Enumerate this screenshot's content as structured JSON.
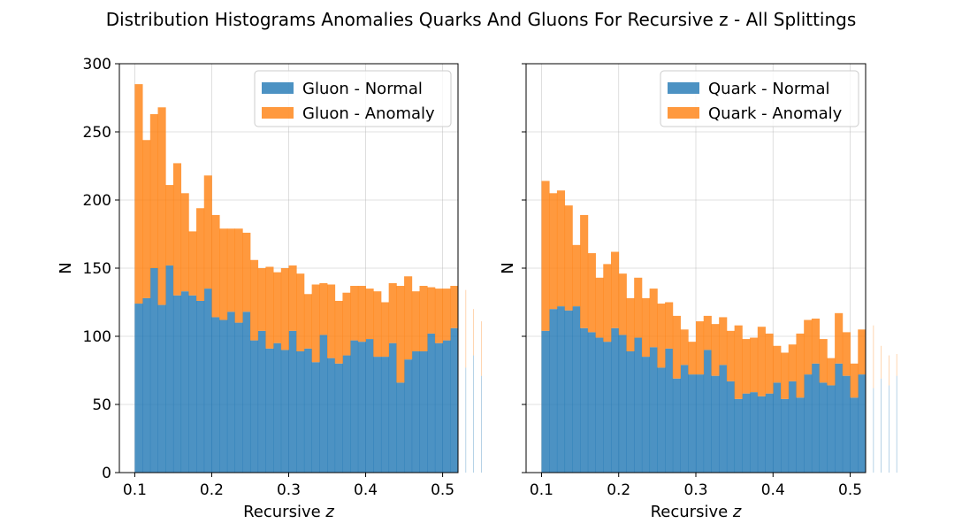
{
  "figure": {
    "title": "Distribution Histograms Anomalies Quarks And Gluons For Recursive $z$ - All Splittings",
    "title_display": "Distribution Histograms Anomalies Quarks And Gluons For Recursive z - All Splittings"
  },
  "colors": {
    "normal": "#1f77b4",
    "anomaly": "#ff7f0e",
    "alpha": 0.8
  },
  "chart_data": [
    {
      "type": "bar",
      "stacked": true,
      "panel": "left",
      "xlabel": "Recursive $z$",
      "ylabel": "N",
      "xlim": [
        0.08,
        0.52
      ],
      "ylim": [
        0,
        300
      ],
      "xticks": [
        0.1,
        0.2,
        0.3,
        0.4,
        0.5
      ],
      "yticks": [
        0,
        50,
        100,
        150,
        200,
        250,
        300
      ],
      "grid": true,
      "legend_loc": "upper right",
      "bin_start": 0.1,
      "bin_width": 0.01,
      "series": [
        {
          "name": "Gluon - Normal",
          "values": [
            124,
            128,
            150,
            123,
            152,
            130,
            133,
            130,
            126,
            135,
            114,
            112,
            118,
            110,
            118,
            97,
            104,
            91,
            95,
            90,
            104,
            89,
            91,
            81,
            101,
            84,
            80,
            86,
            97,
            96,
            98,
            85,
            85,
            95,
            66,
            83,
            89,
            89,
            102,
            95,
            97,
            106,
            109,
            77,
            86,
            71
          ]
        },
        {
          "name": "Gluon - Anomaly",
          "values": [
            161,
            116,
            113,
            145,
            59,
            97,
            72,
            47,
            68,
            83,
            75,
            67,
            61,
            69,
            58,
            59,
            46,
            60,
            52,
            60,
            48,
            57,
            40,
            57,
            38,
            54,
            46,
            46,
            40,
            41,
            37,
            48,
            40,
            44,
            71,
            61,
            44,
            48,
            34,
            40,
            38,
            31,
            16,
            57,
            34,
            40
          ]
        }
      ]
    },
    {
      "type": "bar",
      "stacked": true,
      "panel": "right",
      "xlabel": "Recursive $z$",
      "ylabel": "N",
      "xlim": [
        0.08,
        0.52
      ],
      "ylim": [
        0,
        300
      ],
      "xticks": [
        0.1,
        0.2,
        0.3,
        0.4,
        0.5
      ],
      "yticks": [
        0,
        50,
        100,
        150,
        200,
        250,
        300
      ],
      "grid": true,
      "legend_loc": "upper right",
      "bin_start": 0.1,
      "bin_width": 0.01,
      "series": [
        {
          "name": "Quark - Normal",
          "values": [
            104,
            120,
            122,
            119,
            122,
            106,
            103,
            99,
            96,
            106,
            101,
            89,
            99,
            85,
            92,
            77,
            91,
            69,
            79,
            72,
            72,
            90,
            71,
            79,
            67,
            54,
            58,
            59,
            56,
            58,
            66,
            54,
            67,
            55,
            72,
            80,
            66,
            64,
            80,
            71,
            55,
            72,
            68,
            62,
            69,
            64,
            71
          ]
        },
        {
          "name": "Quark - Anomaly",
          "values": [
            110,
            85,
            85,
            77,
            45,
            83,
            58,
            44,
            57,
            56,
            45,
            39,
            44,
            43,
            43,
            47,
            34,
            46,
            26,
            24,
            39,
            25,
            38,
            35,
            37,
            54,
            40,
            40,
            51,
            44,
            27,
            34,
            27,
            47,
            40,
            33,
            32,
            20,
            37,
            32,
            25,
            33,
            19,
            46,
            24,
            22,
            16
          ]
        }
      ]
    }
  ]
}
